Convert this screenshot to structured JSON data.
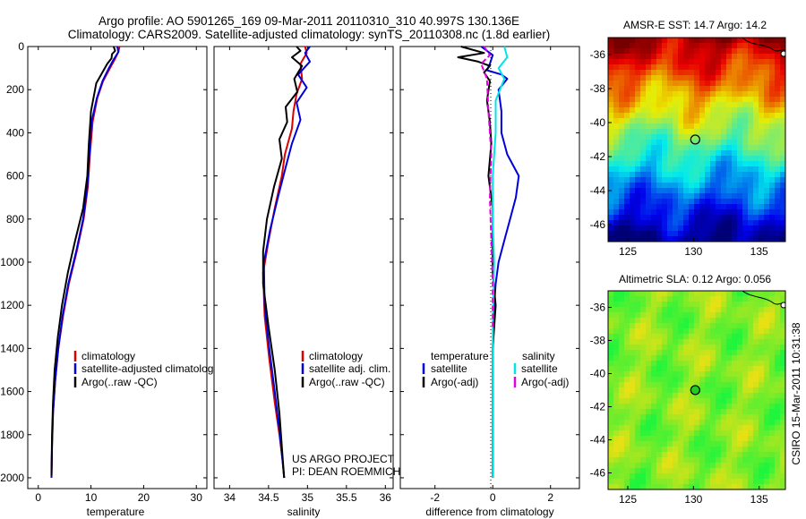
{
  "header": {
    "line1": "Argo profile: AO 5901265_169 09-Mar-2011 20110310_310 40.997S 130.136E",
    "line2": "Climatology: CARS2009. Satellite-adjusted climatology: synTS_20110308.nc (1.8d earlier)"
  },
  "colors": {
    "climatology": "#dd0000",
    "satellite": "#0000dd",
    "argo": "#000000",
    "salinity_sat": "#00e5e5",
    "salinity_argo": "#e000e0"
  },
  "chart_data": [
    {
      "type": "line",
      "id": "temperature",
      "xlabel": "temperature",
      "xlim": [
        -2,
        32
      ],
      "ylim": [
        0,
        2050
      ],
      "y_inverted": true,
      "xticks": [
        0,
        10,
        20,
        30
      ],
      "yticks": [
        0,
        200,
        400,
        600,
        800,
        1000,
        1200,
        1400,
        1600,
        1800,
        2000
      ],
      "legend": [
        "climatology",
        "satellite-adjusted climatolog",
        "Argo(..raw -QC)"
      ],
      "series": [
        {
          "name": "climatology",
          "x": [
            15.4,
            15.2,
            14.5,
            13.6,
            12.3,
            11.2,
            10.3,
            9.8,
            9.4,
            8.6,
            7.3,
            5.8,
            4.7,
            3.8,
            3.2,
            2.8,
            2.6,
            2.5
          ],
          "y": [
            0,
            25,
            60,
            100,
            160,
            240,
            350,
            500,
            650,
            800,
            950,
            1100,
            1250,
            1400,
            1550,
            1700,
            1850,
            2000
          ]
        },
        {
          "name": "satellite-adjusted climatology",
          "x": [
            15.0,
            15.2,
            14.3,
            13.4,
            12.2,
            11.1,
            10.1,
            9.7,
            9.3,
            8.5,
            7.2,
            5.7,
            4.6,
            3.8,
            3.2,
            2.8,
            2.6,
            2.5
          ],
          "y": [
            0,
            25,
            60,
            100,
            160,
            240,
            350,
            500,
            650,
            800,
            950,
            1100,
            1250,
            1400,
            1550,
            1700,
            1850,
            2000
          ]
        },
        {
          "name": "Argo(..raw -QC)",
          "x": [
            14.3,
            14.6,
            14.0,
            13.9,
            13.1,
            12.4,
            11.0,
            10.0,
            9.6,
            9.3,
            8.5,
            7.0,
            5.6,
            4.5,
            3.7,
            3.1,
            2.8,
            2.6,
            2.5
          ],
          "y": [
            0,
            20,
            35,
            55,
            80,
            110,
            170,
            300,
            450,
            600,
            750,
            900,
            1050,
            1200,
            1350,
            1500,
            1650,
            1800,
            1990
          ]
        }
      ]
    },
    {
      "type": "line",
      "id": "salinity",
      "xlabel": "salinity",
      "xlim": [
        33.8,
        36.1
      ],
      "ylim": [
        0,
        2050
      ],
      "y_inverted": true,
      "xticks": [
        34,
        34.5,
        35,
        35.5,
        36
      ],
      "yticks": [
        0,
        200,
        400,
        600,
        800,
        1000,
        1200,
        1400,
        1600,
        1800,
        2000
      ],
      "legend": [
        "climatology",
        "satellite adj. clim.",
        "Argo(..raw -QC)"
      ],
      "annotations": [
        "US ARGO PROJECT",
        "PI: DEAN ROEMMICH"
      ],
      "series": [
        {
          "name": "climatology",
          "x": [
            34.97,
            34.99,
            34.91,
            34.93,
            34.86,
            34.82,
            34.8,
            34.71,
            34.67,
            34.58,
            34.5,
            34.43,
            34.45,
            34.51,
            34.58,
            34.64,
            34.68,
            34.7
          ],
          "y": [
            0,
            30,
            80,
            150,
            220,
            300,
            380,
            500,
            600,
            750,
            900,
            1050,
            1250,
            1450,
            1650,
            1800,
            1920,
            2000
          ]
        },
        {
          "name": "satellite adj. clim.",
          "x": [
            35.03,
            34.97,
            35.03,
            34.88,
            34.99,
            34.86,
            34.91,
            34.8,
            34.72,
            34.62,
            34.52,
            34.44,
            34.45,
            34.51,
            34.58,
            34.64,
            34.68,
            34.7
          ],
          "y": [
            0,
            30,
            70,
            130,
            190,
            260,
            340,
            450,
            560,
            700,
            850,
            1000,
            1200,
            1400,
            1600,
            1780,
            1920,
            2000
          ]
        },
        {
          "name": "Argo(..raw -QC)",
          "x": [
            34.86,
            34.91,
            34.8,
            34.93,
            34.83,
            34.87,
            34.72,
            34.74,
            34.64,
            34.67,
            34.57,
            34.48,
            34.43,
            34.43,
            34.5,
            34.58,
            34.64,
            34.68,
            34.7
          ],
          "y": [
            0,
            20,
            50,
            90,
            150,
            210,
            280,
            350,
            430,
            520,
            650,
            800,
            950,
            1100,
            1300,
            1500,
            1700,
            1900,
            2000
          ]
        }
      ]
    },
    {
      "type": "line",
      "id": "difference",
      "xlabel": "difference from climatology",
      "xlim": [
        -3.2,
        3.0
      ],
      "ylim": [
        0,
        2050
      ],
      "y_inverted": true,
      "xticks": [
        -2,
        0,
        2
      ],
      "yticks": [
        0,
        200,
        400,
        600,
        800,
        1000,
        1200,
        1400,
        1600,
        1800,
        2000
      ],
      "legend_headers": [
        "temperature",
        "salinity"
      ],
      "legend": [
        "satellite",
        "Argo(-adj)",
        "satellite",
        "Argo(-adj)"
      ],
      "series": [
        {
          "name": "temperature satellite",
          "x": [
            -0.4,
            0.0,
            -0.1,
            -0.2,
            0.3,
            0.5,
            0.2,
            0.3,
            0.3,
            0.5,
            0.9,
            0.8,
            0.6,
            0.4,
            0.2,
            0.1,
            0.05,
            0.0,
            0.0
          ],
          "y": [
            0,
            40,
            80,
            110,
            130,
            150,
            200,
            300,
            400,
            500,
            600,
            700,
            800,
            900,
            1000,
            1100,
            1200,
            1400,
            2000
          ]
        },
        {
          "name": "temperature Argo(-adj)",
          "x": [
            -1.1,
            -0.3,
            -1.2,
            -0.5,
            -0.1,
            -0.3,
            -0.1,
            -0.2,
            -0.1,
            -0.05,
            -0.15,
            0.0,
            0.0,
            0.0,
            0.1,
            0.0,
            0.0
          ],
          "y": [
            0,
            30,
            50,
            70,
            90,
            120,
            160,
            250,
            350,
            450,
            600,
            750,
            900,
            1050,
            1200,
            1400,
            2000
          ]
        },
        {
          "name": "salinity satellite",
          "x": [
            0.4,
            0.5,
            0.2,
            0.4,
            0.1,
            0.1,
            0.0,
            0.0,
            0.05,
            0.0,
            0.0
          ],
          "y": [
            0,
            50,
            100,
            150,
            250,
            400,
            600,
            800,
            1000,
            1300,
            2000
          ]
        },
        {
          "name": "salinity Argo(-adj)",
          "x": [
            -0.3,
            -0.1,
            -0.4,
            -0.2,
            -0.15,
            -0.05,
            -0.1,
            -0.05,
            0.0,
            0.0
          ],
          "y": [
            0,
            40,
            80,
            150,
            300,
            500,
            700,
            900,
            1100,
            1300
          ]
        }
      ]
    },
    {
      "type": "heatmap",
      "id": "sst-map",
      "title": "AMSR-E SST: 14.7 Argo: 14.2",
      "xlim": [
        123.5,
        137
      ],
      "ylim": [
        -47,
        -35
      ],
      "xticks": [
        125,
        130,
        135
      ],
      "yticks": [
        -36,
        -38,
        -40,
        -42,
        -44,
        -46
      ],
      "colormap": "jet",
      "marker": {
        "lon": 130.136,
        "lat": -40.997
      }
    },
    {
      "type": "heatmap",
      "id": "sla-map",
      "title": "Altimetric SLA: 0.12 Argo: 0.056",
      "xlim": [
        123.5,
        137
      ],
      "ylim": [
        -47,
        -35
      ],
      "xticks": [
        125,
        130,
        135
      ],
      "yticks": [
        -36,
        -38,
        -40,
        -42,
        -44,
        -46
      ],
      "colormap": "yellow-green",
      "marker": {
        "lon": 130.136,
        "lat": -40.997
      }
    }
  ],
  "footer": {
    "credit": "CSIRO 15-Mar-2011 10:31:38"
  }
}
